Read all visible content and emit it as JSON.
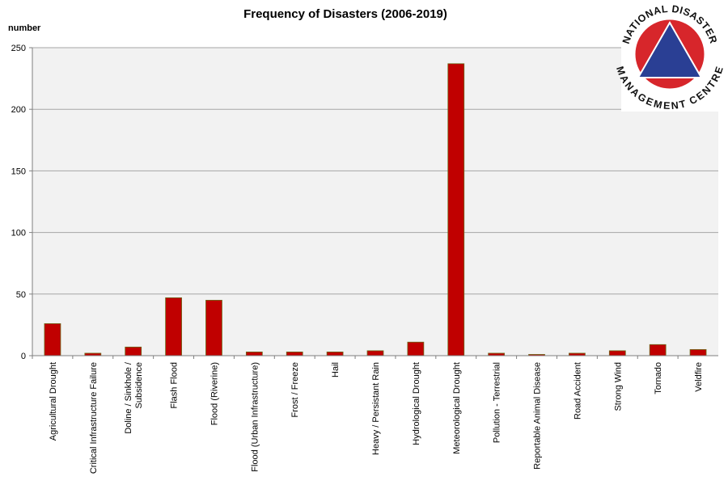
{
  "chart_data": {
    "type": "bar",
    "title": "Frequency of Disasters (2006-2019)",
    "ylabel": "number",
    "xlabel": "",
    "ylim": [
      0,
      250
    ],
    "yticks": [
      0,
      50,
      100,
      150,
      200,
      250
    ],
    "grid": true,
    "legend": "none",
    "colors": {
      "bar": "#c00000",
      "bar_outline": "#6b6b1a",
      "plot_bg": "#f2f2f2",
      "grid": "#a6a6a6"
    },
    "categories": [
      [
        "Agricultural Drought"
      ],
      [
        "Critical Infrastructure Failure"
      ],
      [
        "Doline / Sinkhole /",
        "Subsidence"
      ],
      [
        "Flash Flood"
      ],
      [
        "Flood (Riverine)"
      ],
      [
        "Flood (Urban Infrastructure)"
      ],
      [
        "Frost / Freeze"
      ],
      [
        "Hail"
      ],
      [
        "Heavy / Persistant Rain"
      ],
      [
        "Hydrological Drought"
      ],
      [
        "Meteorological Drought"
      ],
      [
        "Pollution - Terrestrial"
      ],
      [
        "Reportable Animal Disease"
      ],
      [
        "Road Accident"
      ],
      [
        "Strong Wind"
      ],
      [
        "Tornado"
      ],
      [
        "Veldfire"
      ]
    ],
    "values": [
      26,
      2,
      7,
      47,
      45,
      3,
      3,
      3,
      4,
      11,
      237,
      2,
      1,
      2,
      4,
      9,
      5
    ]
  },
  "logo": {
    "top_text": "NATIONAL DISASTER",
    "bottom_text": "MANAGEMENT CENTRE",
    "circle_color": "#d7262b",
    "triangle_color": "#2a3f94",
    "ring_color": "#ffffff"
  }
}
